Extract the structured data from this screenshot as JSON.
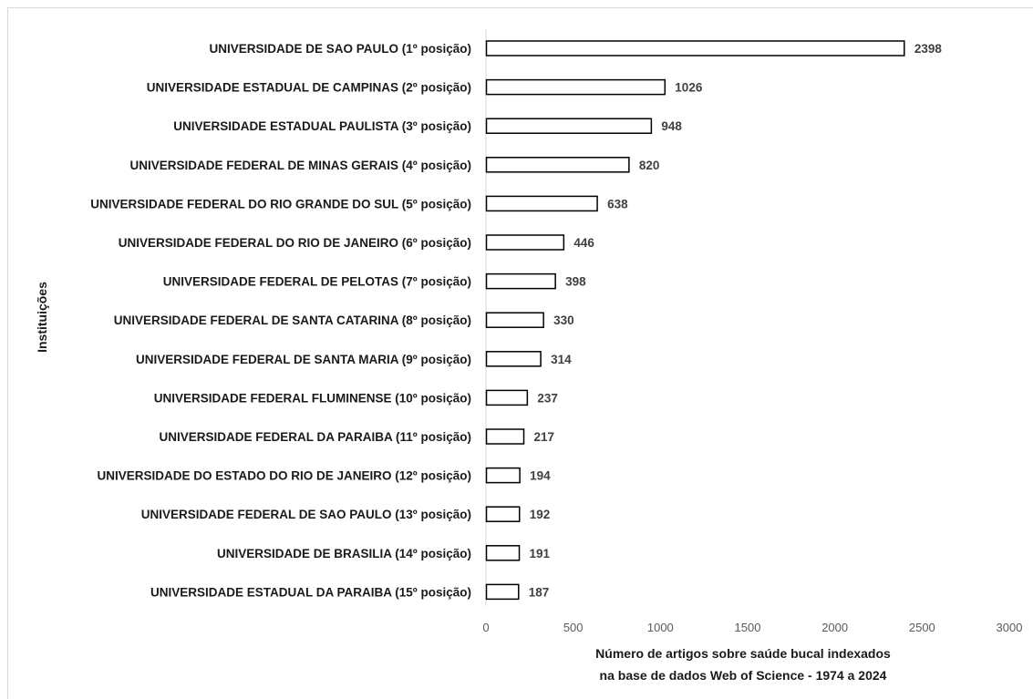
{
  "chart_data": {
    "type": "bar",
    "orientation": "horizontal",
    "categories": [
      "UNIVERSIDADE DE SAO PAULO (1º posição)",
      "UNIVERSIDADE ESTADUAL DE CAMPINAS (2º posição)",
      "UNIVERSIDADE ESTADUAL PAULISTA (3º posição)",
      "UNIVERSIDADE FEDERAL DE MINAS GERAIS (4º posição)",
      "UNIVERSIDADE FEDERAL DO RIO GRANDE DO SUL (5º posição)",
      "UNIVERSIDADE FEDERAL DO RIO DE JANEIRO (6º posição)",
      "UNIVERSIDADE FEDERAL DE PELOTAS (7º posição)",
      "UNIVERSIDADE FEDERAL DE SANTA CATARINA (8º posição)",
      "UNIVERSIDADE FEDERAL DE SANTA MARIA (9º posição)",
      "UNIVERSIDADE FEDERAL FLUMINENSE (10º posição)",
      "UNIVERSIDADE FEDERAL DA PARAIBA (11º posição)",
      "UNIVERSIDADE DO ESTADO DO RIO DE JANEIRO (12º posição)",
      "UNIVERSIDADE FEDERAL DE SAO PAULO (13º posição)",
      "UNIVERSIDADE DE BRASILIA (14º posição)",
      "UNIVERSIDADE ESTADUAL DA PARAIBA (15º posição)"
    ],
    "values": [
      2398,
      1026,
      948,
      820,
      638,
      446,
      398,
      330,
      314,
      237,
      217,
      194,
      192,
      191,
      187
    ],
    "xlabel_lines": [
      "Número de artigos sobre saúde bucal indexados",
      "na base de dados Web of Science - 1974 a 2024"
    ],
    "ylabel": "Instituições",
    "xlim": [
      0,
      3000
    ],
    "xticks": [
      0,
      500,
      1000,
      1500,
      2000,
      2500,
      3000
    ],
    "grid": false,
    "legend": "none",
    "bar_fill": "#ffffff",
    "bar_stroke": "#000000"
  }
}
